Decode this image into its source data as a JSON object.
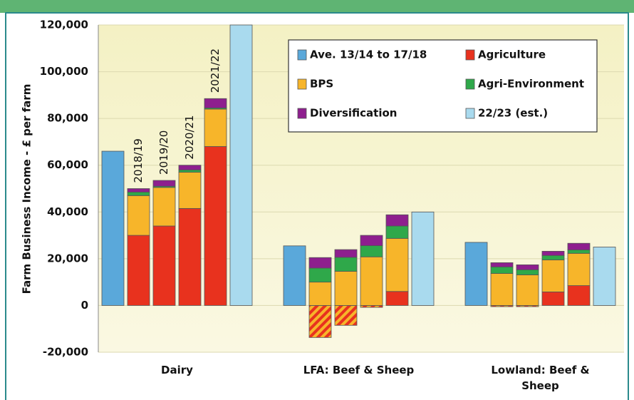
{
  "chart_data": {
    "type": "grouped-stacked-bar",
    "y_label": "Farm Business Income - £ per farm",
    "categories": [
      "Dairy",
      "LFA: Beef & Sheep",
      "Lowland: Beef & Sheep"
    ],
    "years": [
      "2018/19",
      "2019/20",
      "2020/21",
      "2021/22"
    ],
    "ylim": [
      -20000,
      120000
    ],
    "yticks": [
      {
        "value": -20000,
        "label": "-20,000"
      },
      0,
      {
        "value": 20000,
        "label": "20,000"
      },
      {
        "value": 40000,
        "label": "40,000"
      },
      {
        "value": 60000,
        "label": "60,000"
      },
      {
        "value": 80000,
        "label": "80,000"
      },
      {
        "value": 100000,
        "label": "100,000"
      },
      {
        "value": 120000,
        "label": "120,000"
      }
    ],
    "grid": true,
    "series": [
      {
        "name": "Ave. 13/14 to 17/18",
        "color": "#5aa8da",
        "kind": "single",
        "values": [
          66000,
          25500,
          27000
        ]
      },
      {
        "name": "Agriculture",
        "color": "#e8321e",
        "kind": "stack",
        "values": [
          [
            30000,
            34000,
            41500,
            68000
          ],
          [
            -13700,
            -8500,
            -800,
            6000
          ],
          [
            -500,
            -500,
            5800,
            8500
          ]
        ]
      },
      {
        "name": "BPS",
        "color": "#f7b52a",
        "kind": "stack",
        "values": [
          [
            17000,
            16500,
            15500,
            16000
          ],
          [
            10000,
            14600,
            20800,
            22700
          ],
          [
            13700,
            13100,
            13700,
            13800
          ]
        ]
      },
      {
        "name": "Agri-Environment",
        "color": "#2fa84a",
        "kind": "stack",
        "values": [
          [
            1500,
            500,
            1000,
            500
          ],
          [
            6000,
            6000,
            4800,
            5300
          ],
          [
            2800,
            2200,
            1900,
            1500
          ]
        ]
      },
      {
        "name": "Diversification",
        "color": "#8e1f8e",
        "kind": "stack",
        "values": [
          [
            1500,
            2500,
            2000,
            4000
          ],
          [
            4500,
            3300,
            4400,
            4800
          ],
          [
            1800,
            2100,
            1800,
            2800
          ]
        ]
      },
      {
        "name": "22/23 (est.)",
        "color": "#a9daee",
        "kind": "single",
        "values": [
          120000,
          40000,
          25000
        ]
      }
    ]
  }
}
